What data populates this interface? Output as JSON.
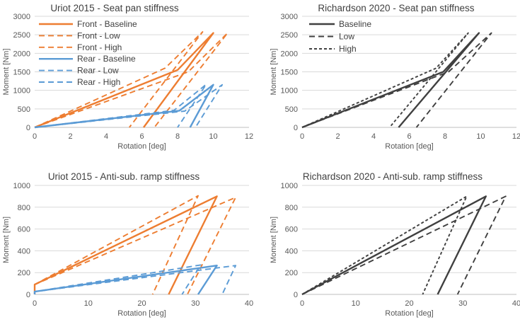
{
  "chart_data": [
    {
      "id": "p1",
      "type": "line",
      "title": "Uriot 2015 - Seat pan stiffness",
      "xlabel": "Rotation [deg]",
      "ylabel": "Moment [Nm]",
      "xlim": [
        0,
        12
      ],
      "ylim": [
        0,
        3000
      ],
      "xticks": [
        0,
        2,
        4,
        6,
        8,
        10,
        12
      ],
      "yticks": [
        0,
        500,
        1000,
        1500,
        2000,
        2500,
        3000
      ],
      "grid": "horizontal",
      "legend_position": "top-left",
      "series": [
        {
          "name": "Front - Baseline",
          "color": "#ed7d31",
          "dash": "solid",
          "x": [
            0,
            8,
            10,
            6.1
          ],
          "y": [
            0,
            1550,
            2550,
            0
          ]
        },
        {
          "name": "Front - Low",
          "color": "#ed7d31",
          "dash": "dashed",
          "x": [
            0,
            7.3,
            9.4,
            5.3
          ],
          "y": [
            0,
            1600,
            2580,
            0
          ]
        },
        {
          "name": "Front - High",
          "color": "#ed7d31",
          "dash": "dashed",
          "x": [
            0,
            8.6,
            10.8,
            6.7
          ],
          "y": [
            0,
            1500,
            2550,
            0
          ]
        },
        {
          "name": "Rear - Baseline",
          "color": "#5b9bd5",
          "dash": "solid",
          "x": [
            0,
            8.1,
            10,
            8.7
          ],
          "y": [
            0,
            450,
            1150,
            0
          ]
        },
        {
          "name": "Rear - Low",
          "color": "#5b9bd5",
          "dash": "dashed",
          "x": [
            0,
            7.8,
            9.6,
            8.0
          ],
          "y": [
            0,
            460,
            1160,
            0
          ]
        },
        {
          "name": "Rear - High",
          "color": "#5b9bd5",
          "dash": "dashed",
          "x": [
            0,
            8.4,
            10.5,
            9.0
          ],
          "y": [
            0,
            440,
            1150,
            0
          ]
        }
      ]
    },
    {
      "id": "p2",
      "type": "line",
      "title": "Richardson 2020 - Seat pan stiffness",
      "xlabel": "Rotation [deg]",
      "ylabel": "Moment [Nm]",
      "xlim": [
        0,
        12
      ],
      "ylim": [
        0,
        3000
      ],
      "xticks": [
        0,
        2,
        4,
        6,
        8,
        10,
        12
      ],
      "yticks": [
        0,
        500,
        1000,
        1500,
        2000,
        2500,
        3000
      ],
      "grid": "horizontal",
      "legend_position": "top-left",
      "series": [
        {
          "name": "Baseline",
          "color": "#404040",
          "dash": "solid",
          "x": [
            0,
            7.9,
            9.9,
            5.4
          ],
          "y": [
            0,
            1500,
            2550,
            0
          ]
        },
        {
          "name": "Low",
          "color": "#404040",
          "dash": "dashed",
          "x": [
            0,
            8.2,
            10.6,
            6.4
          ],
          "y": [
            0,
            1500,
            2550,
            0
          ]
        },
        {
          "name": "High",
          "color": "#404040",
          "dash": "dotted",
          "x": [
            0,
            7.5,
            9.3,
            4.9
          ],
          "y": [
            0,
            1600,
            2550,
            0
          ]
        }
      ]
    },
    {
      "id": "p3",
      "type": "line",
      "title": "Uriot 2015 - Anti-sub. ramp stiffness",
      "xlabel": "Rotation [deg]",
      "ylabel": "Moment [Nm]",
      "xlim": [
        0,
        40
      ],
      "ylim": [
        0,
        1000
      ],
      "xticks": [
        0,
        10,
        20,
        30,
        40
      ],
      "yticks": [
        0,
        200,
        400,
        600,
        800,
        1000
      ],
      "grid": "horizontal",
      "legend_position": "none",
      "series": [
        {
          "name": "Front - Baseline",
          "color": "#ed7d31",
          "dash": "solid",
          "x": [
            0,
            0,
            34,
            25
          ],
          "y": [
            0,
            90,
            900,
            0
          ]
        },
        {
          "name": "Front - Low",
          "color": "#ed7d31",
          "dash": "dashed",
          "x": [
            0,
            0,
            30.5,
            22
          ],
          "y": [
            0,
            90,
            905,
            0
          ]
        },
        {
          "name": "Front - High",
          "color": "#ed7d31",
          "dash": "dashed",
          "x": [
            0,
            0,
            37.5,
            28.5
          ],
          "y": [
            0,
            90,
            890,
            0
          ]
        },
        {
          "name": "Rear - Baseline",
          "color": "#5b9bd5",
          "dash": "solid",
          "x": [
            0,
            0,
            34,
            30.5
          ],
          "y": [
            0,
            25,
            265,
            0
          ]
        },
        {
          "name": "Rear - Low",
          "color": "#5b9bd5",
          "dash": "dashed",
          "x": [
            0,
            0,
            31,
            27.5
          ],
          "y": [
            0,
            25,
            270,
            0
          ]
        },
        {
          "name": "Rear - High",
          "color": "#5b9bd5",
          "dash": "dashed",
          "x": [
            0,
            0,
            37.5,
            35
          ],
          "y": [
            0,
            25,
            265,
            0
          ]
        }
      ]
    },
    {
      "id": "p4",
      "type": "line",
      "title": "Richardson 2020 - Anti-sub. ramp stiffness",
      "xlabel": "Rotation [deg]",
      "ylabel": "Moment [Nm]",
      "xlim": [
        0,
        40
      ],
      "ylim": [
        0,
        1000
      ],
      "xticks": [
        0,
        10,
        20,
        30,
        40
      ],
      "yticks": [
        0,
        200,
        400,
        600,
        800,
        1000
      ],
      "grid": "horizontal",
      "legend_position": "none",
      "series": [
        {
          "name": "Baseline",
          "color": "#404040",
          "dash": "solid",
          "x": [
            0,
            34.3,
            25.3
          ],
          "y": [
            0,
            900,
            0
          ]
        },
        {
          "name": "Low",
          "color": "#404040",
          "dash": "dashed",
          "x": [
            0,
            38,
            29
          ],
          "y": [
            0,
            900,
            0
          ]
        },
        {
          "name": "High",
          "color": "#404040",
          "dash": "dotted",
          "x": [
            0,
            30.7,
            22.5
          ],
          "y": [
            0,
            900,
            0
          ]
        }
      ]
    }
  ]
}
